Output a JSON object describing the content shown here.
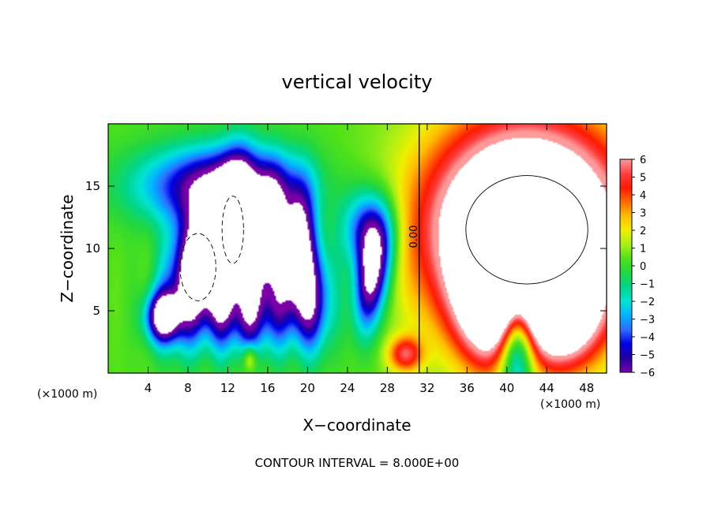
{
  "chart_data": {
    "type": "heatmap",
    "title": "vertical velocity",
    "xlabel": "X−coordinate",
    "ylabel": "Z−coordinate",
    "x_unit_left": "(×1000 m)",
    "x_unit_right": "(×1000 m)",
    "footer": "CONTOUR INTERVAL = 8.000E+00",
    "contour_label": "0.00",
    "xlim": [
      0,
      50
    ],
    "ylim": [
      0,
      20
    ],
    "x_ticks": [
      "4",
      "8",
      "12",
      "16",
      "20",
      "24",
      "28",
      "32",
      "36",
      "40",
      "44",
      "48"
    ],
    "y_ticks": [
      "5",
      "10",
      "15"
    ],
    "colorbar": {
      "labels": [
        "6",
        "5",
        "4",
        "3",
        "2",
        "1",
        "0",
        "−1",
        "−2",
        "−3",
        "−4",
        "−5",
        "−6"
      ],
      "range": [
        -6,
        6
      ],
      "colors": [
        "#7a00a8",
        "#2000a0",
        "#0000e6",
        "#2f6bff",
        "#00b4ff",
        "#00e4d4",
        "#00d68a",
        "#22d640",
        "#4fe11a",
        "#a8ef16",
        "#f0f000",
        "#ffbe00",
        "#ff6a00",
        "#ff1a00",
        "#ff4040",
        "#ff9a9a"
      ],
      "saturation": "#ffffff"
    },
    "features": [
      {
        "kind": "downdraft",
        "x": 9,
        "z": 8.5,
        "amplitude": -10,
        "sx": 2.0,
        "sz": 3.6,
        "tilt": 0.55
      },
      {
        "kind": "downdraft",
        "x": 5.5,
        "z": 4.5,
        "amplitude": -8,
        "sx": 1.2,
        "sz": 1.4
      },
      {
        "kind": "downdraft",
        "x": 12.5,
        "z": 11.5,
        "amplitude": -10,
        "sx": 1.2,
        "sz": 3.6,
        "tilt": 0.3
      },
      {
        "kind": "downdraft",
        "x": 16,
        "z": 11,
        "amplitude": -9,
        "sx": 1.2,
        "sz": 3.2,
        "tilt": 0.25
      },
      {
        "kind": "downdraft",
        "x": 19,
        "z": 10,
        "amplitude": -8.5,
        "sx": 1.1,
        "sz": 3.4,
        "tilt": 0.2
      },
      {
        "kind": "downdraft",
        "x": 11,
        "z": 15,
        "amplitude": -6.5,
        "sx": 5.5,
        "sz": 2.2
      },
      {
        "kind": "downdraft",
        "x": 14,
        "z": 5,
        "amplitude": -6,
        "sx": 3.0,
        "sz": 2.5
      },
      {
        "kind": "downdraft",
        "x": 20.5,
        "z": 6,
        "amplitude": -6,
        "sx": 1.4,
        "sz": 3.0
      },
      {
        "kind": "downdraft",
        "x": 26.5,
        "z": 7.8,
        "amplitude": -8,
        "sx": 1.2,
        "sz": 3.0,
        "tilt": 0.4
      },
      {
        "kind": "downdraft",
        "x": 26,
        "z": 11.5,
        "amplitude": -5,
        "sx": 1.8,
        "sz": 2.2
      },
      {
        "kind": "updraft",
        "x": 42,
        "z": 11.5,
        "amplitude": 14,
        "sx": 6.8,
        "sz": 5.8
      },
      {
        "kind": "updraft",
        "x": 38.5,
        "z": 6.5,
        "amplitude": 9,
        "sx": 2.3,
        "sz": 3.6
      },
      {
        "kind": "updraft",
        "x": 45.5,
        "z": 5.5,
        "amplitude": 9,
        "sx": 2.6,
        "sz": 3.0
      },
      {
        "kind": "downdraft",
        "x": 41,
        "z": 3.0,
        "amplitude": -8,
        "sx": 1.3,
        "sz": 3.3
      },
      {
        "kind": "updraft",
        "x": 29.8,
        "z": 1.5,
        "amplitude": 4.5,
        "sx": 1.2,
        "sz": 1.0
      },
      {
        "kind": "updraft",
        "x": 14.2,
        "z": 1.2,
        "amplitude": 3,
        "sx": 0.5,
        "sz": 0.8
      }
    ]
  }
}
